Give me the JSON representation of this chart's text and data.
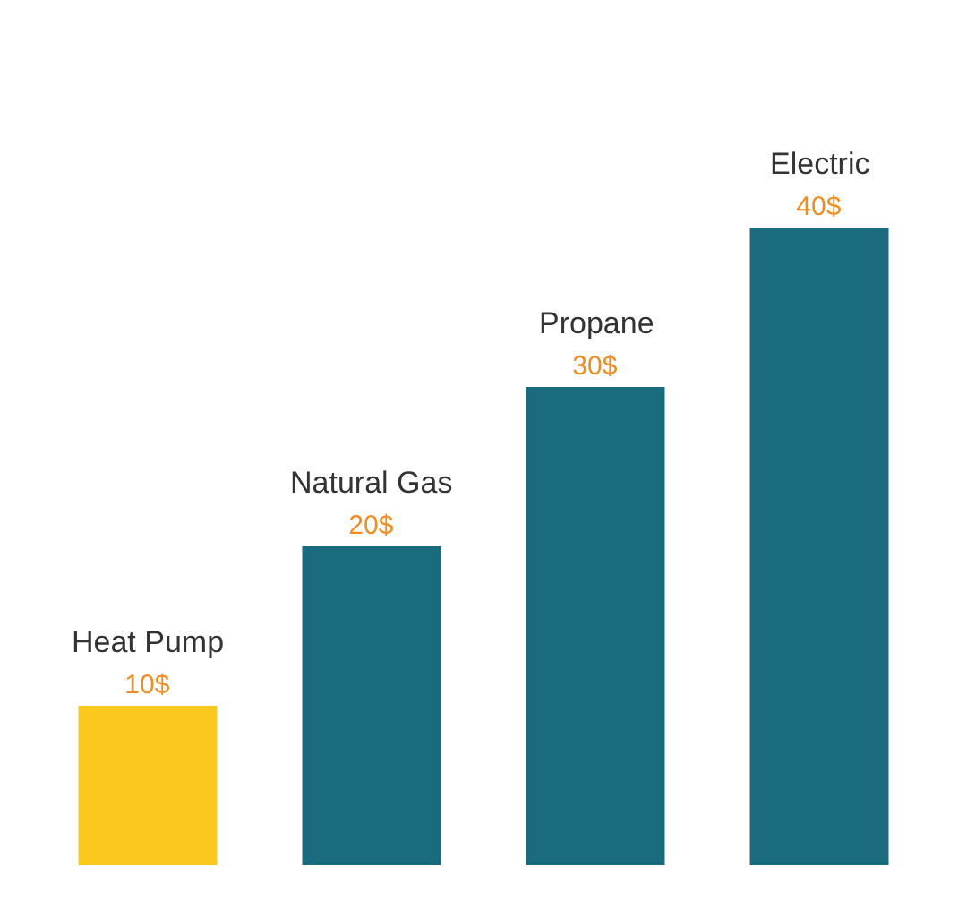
{
  "chart_data": {
    "type": "bar",
    "categories": [
      "Heat Pump",
      "Natural Gas",
      "Propane",
      "Electric"
    ],
    "values": [
      10,
      20,
      30,
      40
    ],
    "colors": [
      "#fbc81c",
      "#1b6b7e",
      "#1b6b7e",
      "#1b6b7e"
    ],
    "value_labels": [
      "10$",
      "20$",
      "30$",
      "40$"
    ],
    "tick_labels": false
  }
}
